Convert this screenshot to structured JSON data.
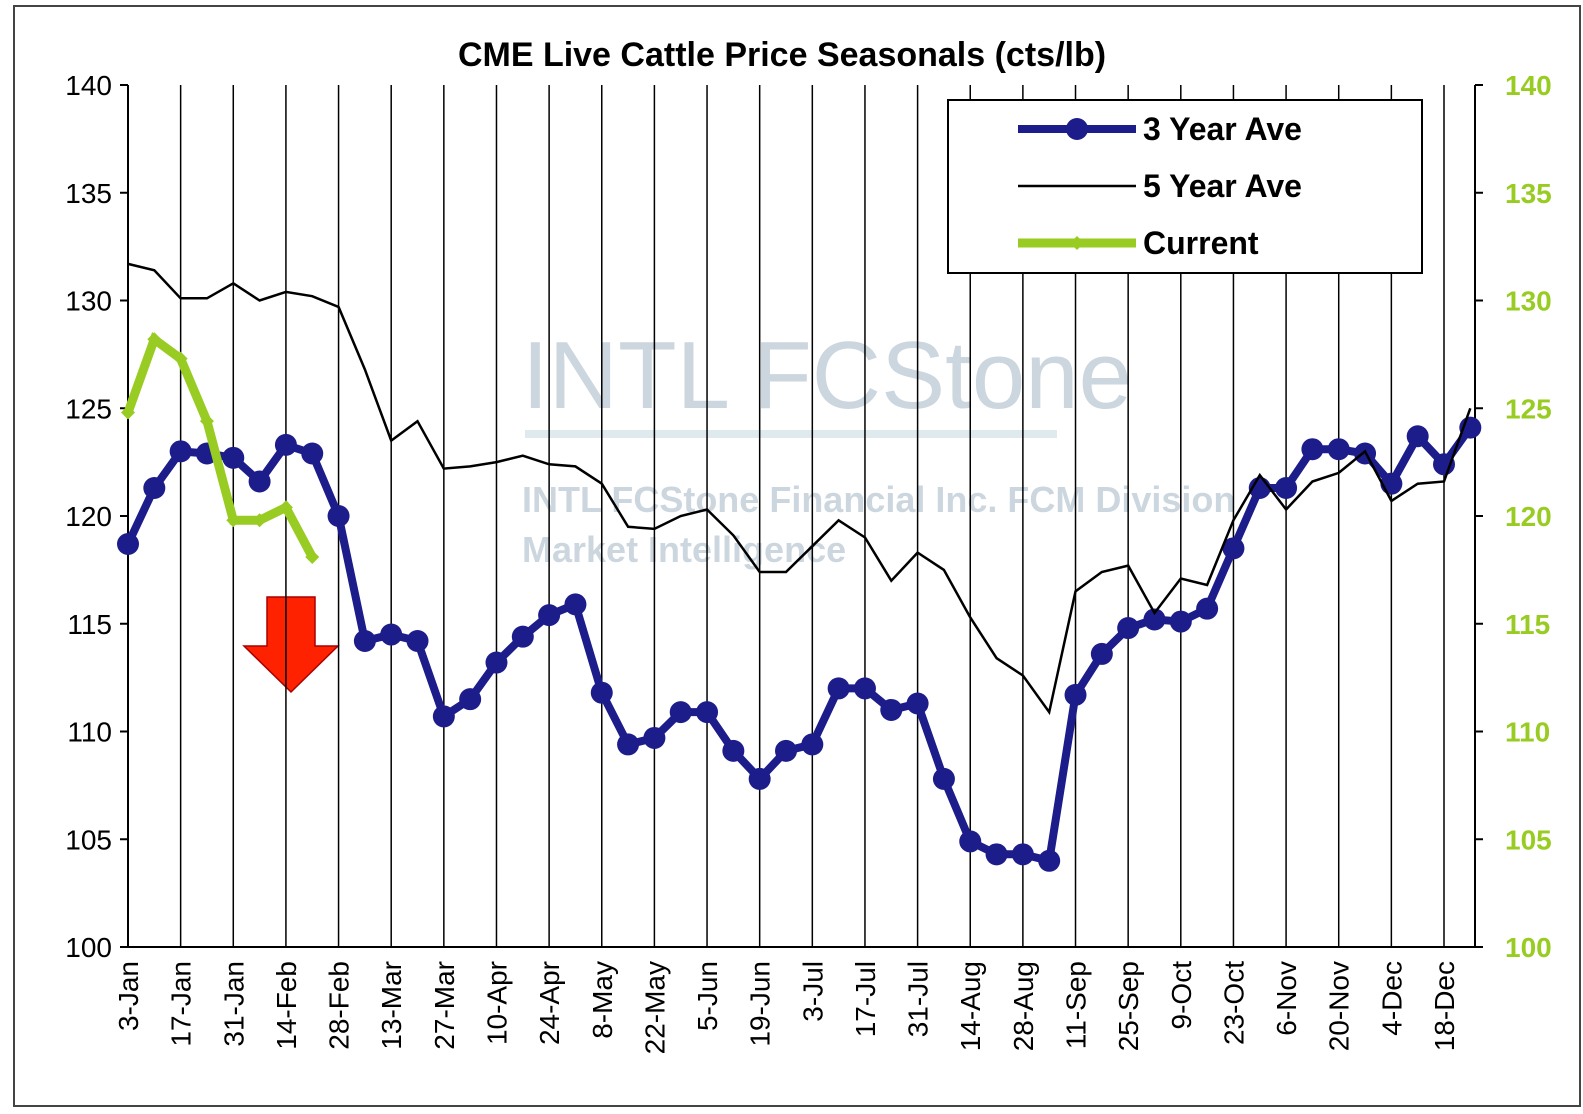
{
  "chart_data": {
    "type": "line",
    "title": "CME Live Cattle Price Seasonals (cts/lb)",
    "categories": [
      "3-Jan",
      null,
      "17-Jan",
      null,
      "31-Jan",
      null,
      "14-Feb",
      null,
      "28-Feb",
      null,
      "13-Mar",
      null,
      "27-Mar",
      null,
      "10-Apr",
      null,
      "24-Apr",
      null,
      "8-May",
      null,
      "22-May",
      null,
      "5-Jun",
      null,
      "19-Jun",
      null,
      "3-Jul",
      null,
      "17-Jul",
      null,
      "31-Jul",
      null,
      "14-Aug",
      null,
      "28-Aug",
      null,
      "11-Sep",
      null,
      "25-Sep",
      null,
      "9-Oct",
      null,
      "23-Oct",
      null,
      "6-Nov",
      null,
      "20-Nov",
      null,
      "4-Dec",
      null,
      "18-Dec",
      null
    ],
    "series": [
      {
        "name": "3 Year Ave",
        "color": "#1c1c8a",
        "values": [
          118.7,
          121.3,
          123.0,
          122.9,
          122.7,
          121.6,
          123.3,
          122.9,
          120.0,
          114.2,
          114.5,
          114.2,
          110.7,
          111.5,
          113.2,
          114.4,
          115.4,
          115.9,
          111.8,
          109.4,
          109.7,
          110.9,
          110.9,
          109.1,
          107.8,
          109.1,
          109.4,
          112.0,
          112.0,
          111.0,
          111.3,
          107.8,
          104.9,
          104.3,
          104.3,
          104.0,
          111.7,
          113.6,
          114.8,
          115.2,
          115.1,
          115.7,
          118.5,
          121.3,
          121.3,
          123.1,
          123.1,
          122.9,
          121.5,
          123.7,
          122.4,
          124.1
        ]
      },
      {
        "name": "5 Year Ave",
        "color": "#000000",
        "values": [
          131.7,
          131.4,
          130.1,
          130.1,
          130.8,
          130.0,
          130.4,
          130.2,
          129.7,
          126.8,
          123.5,
          124.4,
          122.2,
          122.3,
          122.5,
          122.8,
          122.4,
          122.3,
          121.5,
          119.5,
          119.4,
          120.0,
          120.3,
          119.1,
          117.4,
          117.4,
          118.6,
          119.8,
          119.0,
          117.0,
          118.3,
          117.5,
          115.3,
          113.4,
          112.6,
          110.9,
          116.5,
          117.4,
          117.7,
          115.5,
          117.1,
          116.8,
          119.8,
          121.9,
          120.3,
          121.6,
          122.0,
          123.0,
          120.7,
          121.5,
          121.6,
          125.0
        ]
      },
      {
        "name": "Current",
        "color": "#99cc22",
        "values": [
          124.8,
          128.2,
          127.3,
          124.4,
          119.8,
          119.8,
          120.4,
          118.1,
          null,
          null,
          null,
          null,
          null,
          null,
          null,
          null,
          null,
          null,
          null,
          null,
          null,
          null,
          null,
          null,
          null,
          null,
          null,
          null,
          null,
          null,
          null,
          null,
          null,
          null,
          null,
          null,
          null,
          null,
          null,
          null,
          null,
          null,
          null,
          null,
          null,
          null,
          null,
          null,
          null,
          null,
          null,
          null
        ]
      }
    ],
    "ylim": [
      100,
      140
    ],
    "yticks": [
      100,
      105,
      110,
      115,
      120,
      125,
      130,
      135,
      140
    ],
    "y2lim": [
      100,
      140
    ],
    "y2ticks": [
      100,
      105,
      110,
      115,
      120,
      125,
      130,
      135,
      140
    ],
    "grid": "x",
    "legend": "upper right",
    "watermark": [
      "INTL FCStone",
      "INTL FCStone Financial Inc. FCM Division",
      "Market Intelligence"
    ]
  }
}
